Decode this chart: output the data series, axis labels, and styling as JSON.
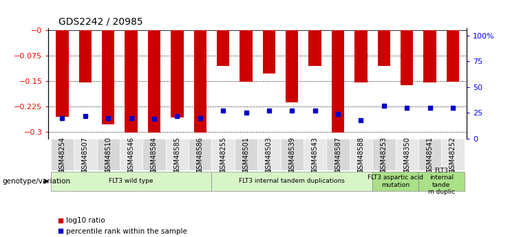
{
  "title": "GDS2242 / 20985",
  "samples": [
    "GSM48254",
    "GSM48507",
    "GSM48510",
    "GSM48546",
    "GSM48584",
    "GSM48585",
    "GSM48586",
    "GSM48255",
    "GSM48501",
    "GSM48503",
    "GSM48539",
    "GSM48543",
    "GSM48587",
    "GSM48588",
    "GSM48253",
    "GSM48350",
    "GSM48541",
    "GSM48252"
  ],
  "log10_ratio": [
    -0.255,
    -0.155,
    -0.278,
    -0.302,
    -0.302,
    -0.258,
    -0.302,
    -0.105,
    -0.152,
    -0.127,
    -0.213,
    -0.105,
    -0.302,
    -0.155,
    -0.105,
    -0.163,
    -0.155,
    -0.152
  ],
  "pct_rank": [
    20,
    22,
    20,
    20,
    19,
    22,
    20,
    27,
    25,
    27,
    27,
    27,
    24,
    18,
    32,
    30,
    30,
    30
  ],
  "groups": [
    {
      "label": "FLT3 wild type",
      "start": 0,
      "end": 6,
      "color": "#d8f5c8"
    },
    {
      "label": "FLT3 internal tandem duplications",
      "start": 7,
      "end": 13,
      "color": "#d8f5c8"
    },
    {
      "label": "FLT3 aspartic acid\nmutation",
      "start": 14,
      "end": 15,
      "color": "#aae088"
    },
    {
      "label": "FLT3\ninternal\ntande\nm duplic",
      "start": 16,
      "end": 17,
      "color": "#aae088"
    }
  ],
  "ylim_left": [
    -0.32,
    0.005
  ],
  "ylim_right": [
    0,
    107
  ],
  "yticks_left": [
    0,
    -0.075,
    -0.15,
    -0.225,
    -0.3
  ],
  "ytick_labels_left": [
    "−0",
    "−0.075",
    "−0.15",
    "−0.225",
    "−0.3"
  ],
  "yticks_right": [
    0,
    25,
    50,
    75,
    100
  ],
  "ytick_labels_right": [
    "0",
    "25",
    "50",
    "75",
    "100%"
  ],
  "bar_color": "#cc0000",
  "dot_color": "#0000cc",
  "bg_color": "#f0f0f0"
}
